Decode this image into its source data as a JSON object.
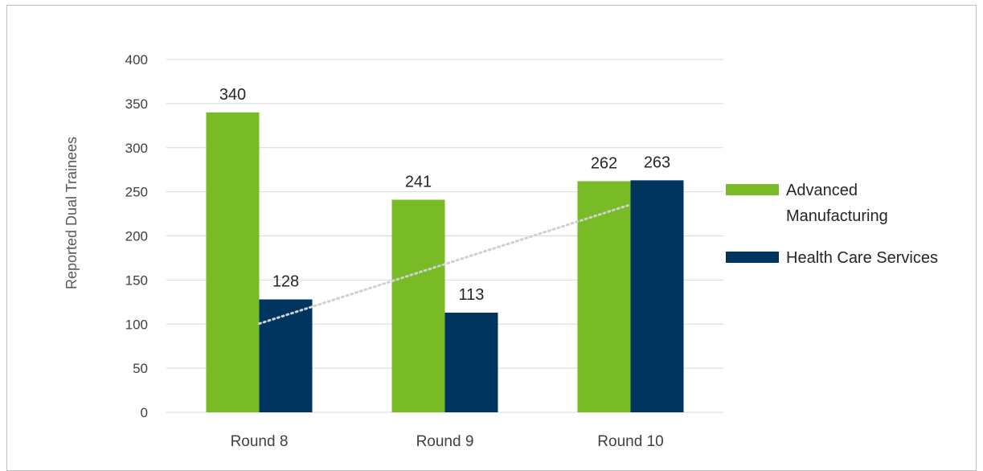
{
  "chart_data": {
    "type": "bar",
    "categories": [
      "Round 8",
      "Round 9",
      "Round 10"
    ],
    "series": [
      {
        "name": "Advanced Manufacturing",
        "values": [
          340,
          241,
          262
        ],
        "color": "#78bb26"
      },
      {
        "name": "Health Care Services",
        "values": [
          128,
          113,
          263
        ],
        "color": "#003560"
      }
    ],
    "title": "",
    "xlabel": "",
    "ylabel": "Reported Dual Trainees",
    "ylim": [
      0,
      400
    ],
    "yticks": [
      0,
      50,
      100,
      150,
      200,
      250,
      300,
      350,
      400
    ],
    "grid": true,
    "legend_position": "right",
    "trendline": {
      "style": "dotted",
      "color": "#d0d0d0",
      "series": "Health Care Services"
    }
  }
}
